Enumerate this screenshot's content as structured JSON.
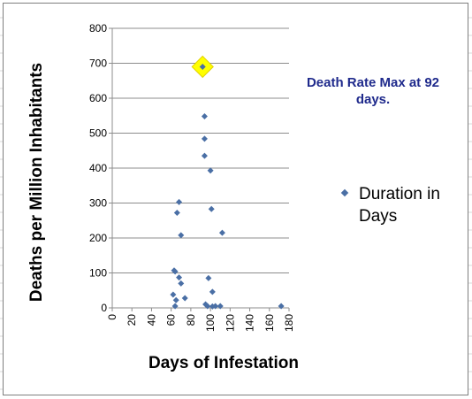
{
  "chart_data": {
    "type": "scatter",
    "title": "",
    "xlabel": "Days of Infestation",
    "ylabel": "Deaths per Million Inhabitants",
    "xlim": [
      0,
      180
    ],
    "ylim": [
      0,
      800
    ],
    "x_ticks": [
      0,
      20,
      40,
      60,
      80,
      100,
      120,
      140,
      160,
      180
    ],
    "y_ticks": [
      0,
      100,
      200,
      300,
      400,
      500,
      600,
      700,
      800
    ],
    "grid": "horizontal",
    "legend_position": "right",
    "series": [
      {
        "name": "Duration in Days",
        "color": "#4a6fa5",
        "marker": "diamond",
        "points": [
          {
            "x": 62,
            "y": 38
          },
          {
            "x": 63,
            "y": 107
          },
          {
            "x": 64,
            "y": 104
          },
          {
            "x": 64,
            "y": 5
          },
          {
            "x": 65,
            "y": 22
          },
          {
            "x": 66,
            "y": 272
          },
          {
            "x": 68,
            "y": 303
          },
          {
            "x": 68,
            "y": 87
          },
          {
            "x": 70,
            "y": 70
          },
          {
            "x": 70,
            "y": 208
          },
          {
            "x": 74,
            "y": 28
          },
          {
            "x": 92,
            "y": 690
          },
          {
            "x": 94,
            "y": 548
          },
          {
            "x": 94,
            "y": 484
          },
          {
            "x": 94,
            "y": 435
          },
          {
            "x": 95,
            "y": 10
          },
          {
            "x": 97,
            "y": 5
          },
          {
            "x": 98,
            "y": 85
          },
          {
            "x": 100,
            "y": 393
          },
          {
            "x": 101,
            "y": 283
          },
          {
            "x": 102,
            "y": 46
          },
          {
            "x": 102,
            "y": 4
          },
          {
            "x": 105,
            "y": 5
          },
          {
            "x": 110,
            "y": 5
          },
          {
            "x": 112,
            "y": 215
          },
          {
            "x": 172,
            "y": 5
          }
        ]
      }
    ],
    "highlight": {
      "x": 92,
      "y": 690,
      "color": "#ffff00"
    },
    "annotation": "Death Rate Max at 92 days."
  }
}
